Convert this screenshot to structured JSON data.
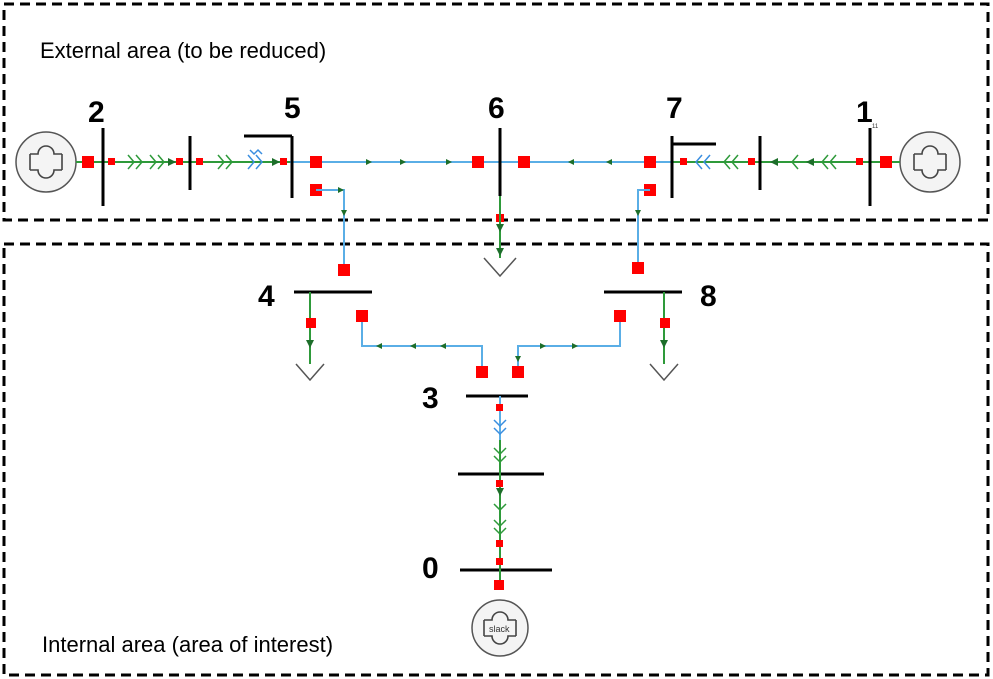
{
  "areas": {
    "external": {
      "label": "External area (to be reduced)"
    },
    "internal": {
      "label": "Internal area (area of interest)"
    }
  },
  "buses": [
    {
      "id": "bus-0",
      "label": "0"
    },
    {
      "id": "bus-1",
      "label": "1"
    },
    {
      "id": "bus-2",
      "label": "2"
    },
    {
      "id": "bus-3",
      "label": "3"
    },
    {
      "id": "bus-4",
      "label": "4"
    },
    {
      "id": "bus-5",
      "label": "5"
    },
    {
      "id": "bus-6",
      "label": "6"
    },
    {
      "id": "bus-7",
      "label": "7"
    },
    {
      "id": "bus-8",
      "label": "8"
    }
  ],
  "generators": {
    "slack": {
      "label": "slack"
    },
    "gen1_tag": {
      "label": "11"
    }
  },
  "colors": {
    "breaker": "#ff0000",
    "line": "#5aaee6",
    "branch_green": "#2e9a3a",
    "bus_bar": "#000000"
  }
}
